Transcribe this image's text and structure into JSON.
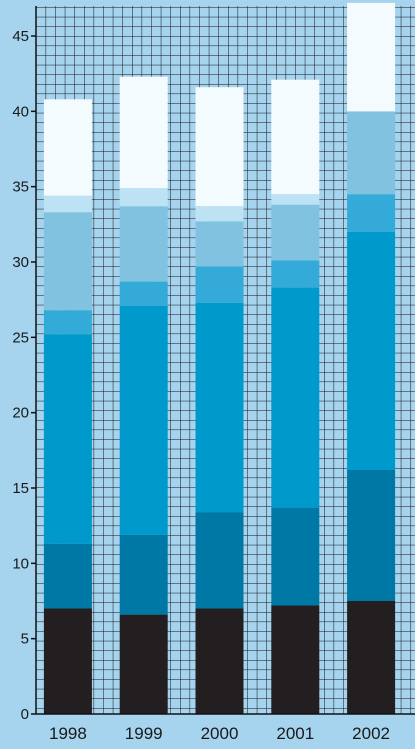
{
  "chart_data": {
    "type": "bar",
    "stacked": true,
    "title": "",
    "xlabel": "",
    "ylabel": "",
    "categories": [
      "1998",
      "1999",
      "2000",
      "2001",
      "2002"
    ],
    "ylim": [
      0,
      45
    ],
    "yticks": [
      0,
      5,
      10,
      15,
      20,
      25,
      30,
      35,
      40,
      45
    ],
    "grid": true,
    "legend": "none",
    "series": [
      {
        "color": "#231f20",
        "values": [
          7.0,
          6.6,
          7.0,
          7.2,
          7.5
        ]
      },
      {
        "color": "#0078a6",
        "values": [
          4.3,
          5.3,
          6.4,
          6.5,
          8.7
        ]
      },
      {
        "color": "#0099cc",
        "values": [
          13.9,
          15.2,
          13.9,
          14.6,
          15.8
        ]
      },
      {
        "color": "#33aad8",
        "values": [
          1.6,
          1.6,
          2.4,
          1.8,
          2.5
        ]
      },
      {
        "color": "#80c2e0",
        "values": [
          6.5,
          5.0,
          3.0,
          3.7,
          5.5
        ]
      },
      {
        "color": "#bde2f4",
        "values": [
          1.1,
          1.2,
          1.0,
          0.7,
          0.0
        ]
      },
      {
        "color": "#f3fbff",
        "values": [
          6.4,
          7.4,
          7.9,
          7.6,
          7.2
        ]
      }
    ]
  }
}
